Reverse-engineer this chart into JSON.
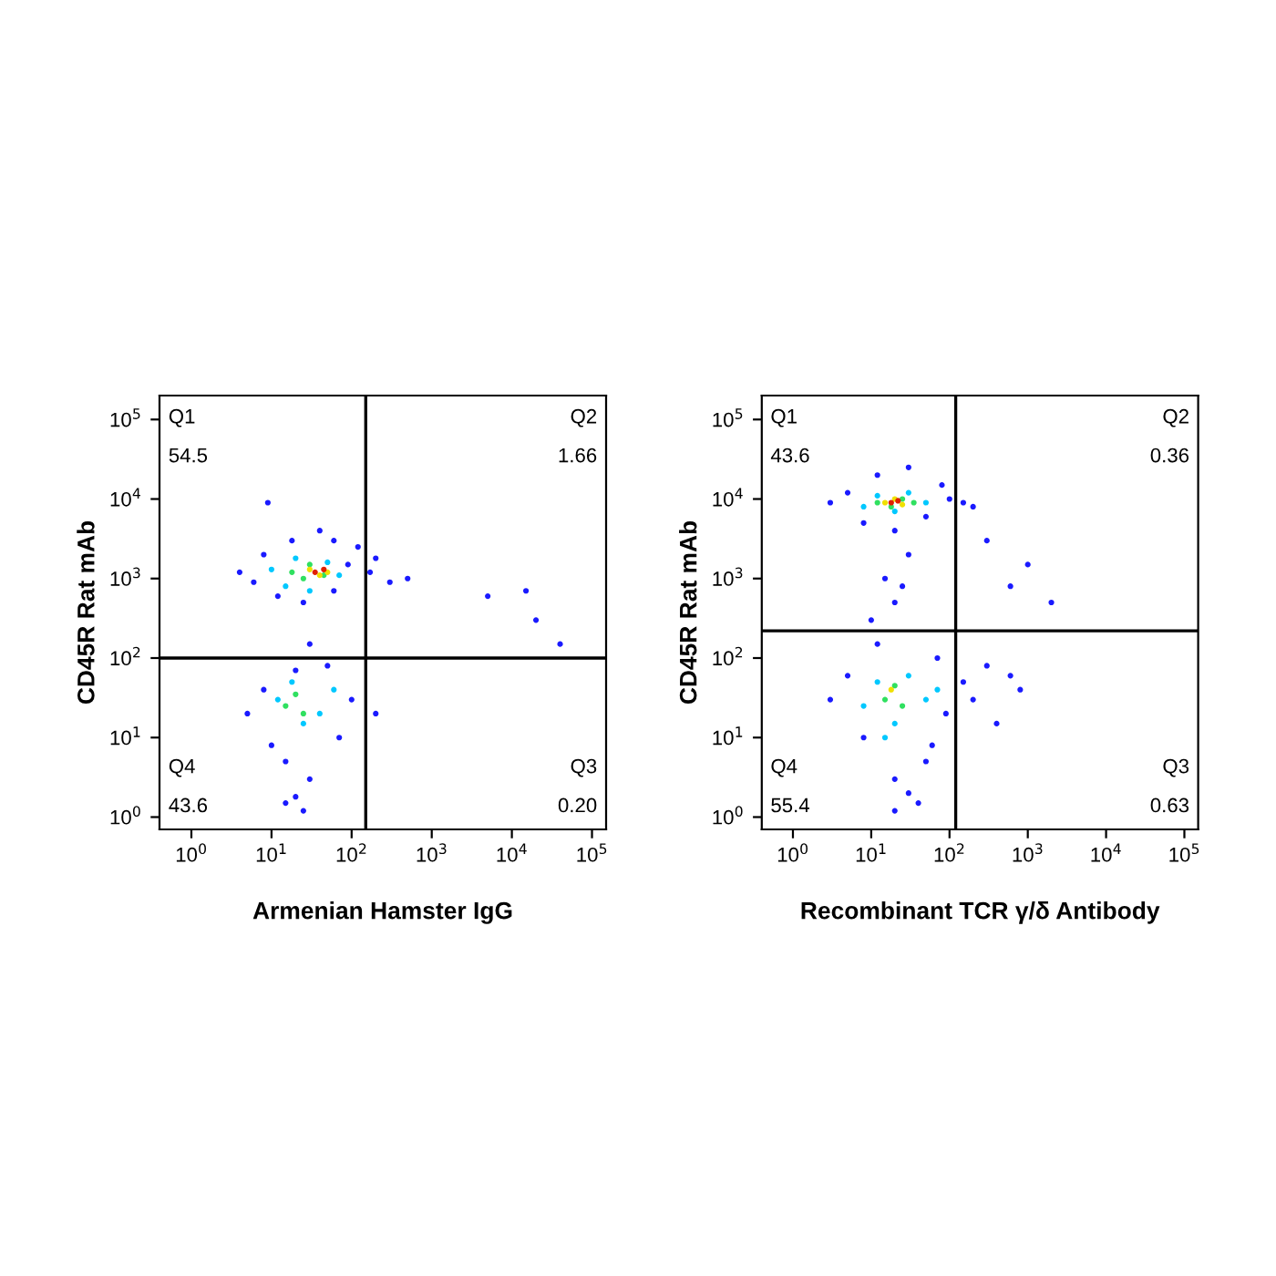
{
  "chart_data": [
    {
      "type": "scatter",
      "xlabel": "Armenian Hamster IgG",
      "ylabel": "CD45R Rat mAb",
      "log": "xy",
      "marker": "circle",
      "grid": false,
      "xlim": [
        0.4,
        150000
      ],
      "ylim": [
        0.7,
        200000
      ],
      "xticks": [
        {
          "value": 1,
          "label": "10$^{0}$"
        },
        {
          "value": 10,
          "label": "10$^{1}$"
        },
        {
          "value": 100,
          "label": "10$^{2}$"
        },
        {
          "value": 1000,
          "label": "10$^{3}$"
        },
        {
          "value": 10000,
          "label": "10$^{4}$"
        },
        {
          "value": 100000,
          "label": "10$^{5}$"
        }
      ],
      "yticks": [
        {
          "value": 1,
          "label": "10$^{0}$"
        },
        {
          "value": 10,
          "label": "10$^{1}$"
        },
        {
          "value": 100,
          "label": "10$^{2}$"
        },
        {
          "value": 1000,
          "label": "10$^{3}$"
        },
        {
          "value": 10000,
          "label": "10$^{4}$"
        },
        {
          "value": 100000,
          "label": "10$^{5}$"
        }
      ],
      "ref_lines": [
        {
          "axis": "x",
          "value": 150,
          "color": "#000000"
        },
        {
          "axis": "y",
          "value": 100,
          "color": "#000000"
        }
      ],
      "annotations": [
        "Q1",
        "54.5",
        "Q2",
        "1.66",
        "Q3",
        "0.20",
        "Q4",
        "43.6"
      ],
      "series": [
        {
          "color": "#1a1aff",
          "x": [
            4,
            6,
            8,
            12,
            18,
            25,
            40,
            60,
            90,
            120,
            170,
            200,
            300,
            500,
            5000,
            15000,
            20000,
            40000,
            5,
            8,
            10,
            15,
            20,
            30,
            50,
            70,
            100,
            200,
            15,
            20,
            25,
            9,
            30,
            60
          ],
          "values": [
            1200,
            900,
            2000,
            600,
            3000,
            500,
            4000,
            700,
            1500,
            2500,
            1200,
            1800,
            900,
            1000,
            600,
            700,
            300,
            150,
            20,
            40,
            8,
            5,
            70,
            3,
            80,
            10,
            30,
            20,
            1.5,
            1.8,
            1.2,
            9000,
            150,
            3000
          ]
        },
        {
          "color": "#00c8ff",
          "x": [
            10,
            15,
            20,
            30,
            50,
            70,
            12,
            18,
            25,
            40,
            60
          ],
          "values": [
            1300,
            800,
            1800,
            700,
            1600,
            1100,
            30,
            50,
            15,
            20,
            40
          ]
        },
        {
          "color": "#30e060",
          "x": [
            18,
            25,
            30,
            45,
            15,
            20,
            25
          ],
          "values": [
            1200,
            1000,
            1500,
            1100,
            25,
            35,
            20
          ]
        },
        {
          "color": "#f0e000",
          "x": [
            30,
            40,
            50
          ],
          "values": [
            1300,
            1100,
            1200
          ]
        },
        {
          "color": "#e02000",
          "x": [
            35,
            45
          ],
          "values": [
            1200,
            1300
          ]
        }
      ]
    },
    {
      "type": "scatter",
      "xlabel": "Recombinant TCR γ/δ Antibody",
      "ylabel": "CD45R Rat mAb",
      "log": "xy",
      "marker": "circle",
      "grid": false,
      "xlim": [
        0.4,
        150000
      ],
      "ylim": [
        0.7,
        200000
      ],
      "xticks": [
        {
          "value": 1,
          "label": "10$^{0}$"
        },
        {
          "value": 10,
          "label": "10$^{1}$"
        },
        {
          "value": 100,
          "label": "10$^{2}$"
        },
        {
          "value": 1000,
          "label": "10$^{3}$"
        },
        {
          "value": 10000,
          "label": "10$^{4}$"
        },
        {
          "value": 100000,
          "label": "10$^{5}$"
        }
      ],
      "yticks": [
        {
          "value": 1,
          "label": "10$^{0}$"
        },
        {
          "value": 10,
          "label": "10$^{1}$"
        },
        {
          "value": 100,
          "label": "10$^{2}$"
        },
        {
          "value": 1000,
          "label": "10$^{3}$"
        },
        {
          "value": 10000,
          "label": "10$^{4}$"
        },
        {
          "value": 100000,
          "label": "10$^{5}$"
        }
      ],
      "ref_lines": [
        {
          "axis": "x",
          "value": 120,
          "color": "#000000"
        },
        {
          "axis": "y",
          "value": 220,
          "color": "#000000"
        }
      ],
      "annotations": [
        "Q1",
        "43.6",
        "Q2",
        "0.36",
        "Q3",
        "0.63",
        "Q4",
        "55.4"
      ],
      "series": [
        {
          "color": "#1a1aff",
          "x": [
            3,
            5,
            8,
            12,
            20,
            30,
            50,
            80,
            100,
            150,
            200,
            300,
            600,
            1000,
            2000,
            3,
            5,
            8,
            12,
            20,
            30,
            50,
            70,
            90,
            150,
            200,
            300,
            400,
            600,
            800,
            15,
            20,
            10,
            30,
            25,
            40,
            60,
            20
          ],
          "values": [
            9000,
            12000,
            5000,
            20000,
            4000,
            25000,
            6000,
            15000,
            10000,
            9000,
            8000,
            3000,
            800,
            1500,
            500,
            30,
            60,
            10,
            150,
            3,
            2,
            5,
            100,
            20,
            50,
            30,
            80,
            15,
            60,
            40,
            1000,
            500,
            300,
            2000,
            800,
            1.5,
            8,
            1.2
          ]
        },
        {
          "color": "#00c8ff",
          "x": [
            8,
            12,
            20,
            30,
            50,
            8,
            12,
            20,
            30,
            50,
            70,
            15
          ],
          "values": [
            8000,
            11000,
            7000,
            12000,
            9000,
            25,
            50,
            15,
            60,
            30,
            40,
            10
          ]
        },
        {
          "color": "#30e060",
          "x": [
            12,
            18,
            25,
            35,
            15,
            20,
            25
          ],
          "values": [
            9000,
            8000,
            10000,
            9000,
            30,
            45,
            25
          ]
        },
        {
          "color": "#f0e000",
          "x": [
            15,
            20,
            25,
            18
          ],
          "values": [
            9000,
            10000,
            8500,
            40
          ]
        },
        {
          "color": "#e02000",
          "x": [
            18,
            22
          ],
          "values": [
            9000,
            9500
          ]
        }
      ]
    }
  ]
}
